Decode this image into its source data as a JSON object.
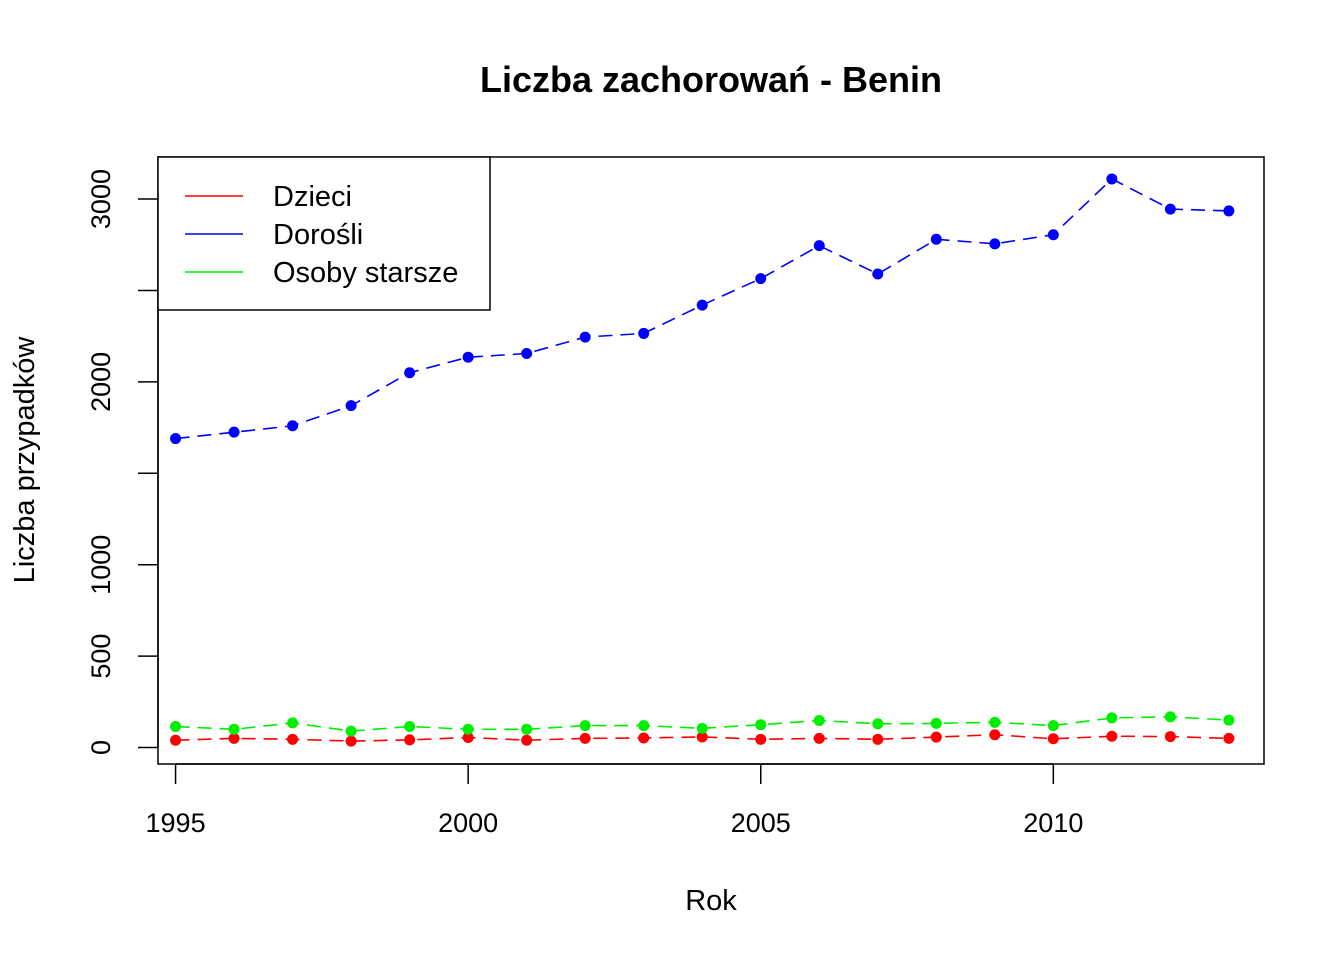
{
  "chart_data": {
    "type": "line",
    "title": "Liczba zachorowań -  Benin",
    "xlabel": "Rok",
    "ylabel": "Liczba przypadków",
    "xlim": [
      1994.7,
      2013.6
    ],
    "ylim": [
      -90,
      3230
    ],
    "x_ticks": [
      1995,
      2000,
      2005,
      2010
    ],
    "x_tick_labels": [
      "1995",
      "2000",
      "2005",
      "2010"
    ],
    "y_ticks": [
      0,
      500,
      1000,
      1500,
      2000,
      2500,
      3000
    ],
    "y_tick_labels": [
      "0",
      "500",
      "1000",
      "",
      "2000",
      "",
      "3000"
    ],
    "grid": false,
    "legend_position": "top-left",
    "x": [
      1995,
      1996,
      1997,
      1998,
      1999,
      2000,
      2001,
      2002,
      2003,
      2004,
      2005,
      2006,
      2007,
      2008,
      2009,
      2010,
      2011,
      2012,
      2013
    ],
    "series": [
      {
        "name": "Dzieci",
        "color": "#ff0000",
        "values": [
          40,
          50,
          45,
          35,
          42,
          55,
          40,
          50,
          52,
          58,
          45,
          50,
          45,
          57,
          70,
          48,
          62,
          60,
          50
        ]
      },
      {
        "name": "Dorośli",
        "color": "#0000ff",
        "values": [
          1690,
          1725,
          1760,
          1870,
          2050,
          2135,
          2155,
          2245,
          2265,
          2420,
          2565,
          2745,
          2590,
          2780,
          2755,
          2805,
          3110,
          2945,
          2935
        ]
      },
      {
        "name": "Osoby starsze",
        "color": "#00ee00",
        "values": [
          115,
          100,
          135,
          90,
          115,
          100,
          100,
          120,
          120,
          105,
          125,
          148,
          130,
          132,
          138,
          120,
          162,
          168,
          150
        ]
      }
    ]
  }
}
